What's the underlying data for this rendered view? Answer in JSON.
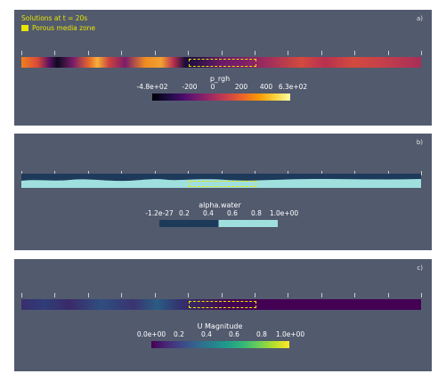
{
  "legend": {
    "title": "Solutions at t = 20s",
    "porous_label": "Porous media zone",
    "porous_color": "#e8e600"
  },
  "panels": [
    {
      "label": "a)",
      "field": "p_rgh",
      "tick_labels": [
        "-4.8e+02",
        "-200",
        "0",
        "200",
        "400",
        "6.3e+02"
      ],
      "colormap": "inferno"
    },
    {
      "label": "b)",
      "field": "alpha.water",
      "tick_labels": [
        "-1.2e-27",
        "0.2",
        "0.4",
        "0.6",
        "0.8",
        "1.0e+00"
      ],
      "colormap": "two-tone blue"
    },
    {
      "label": "c)",
      "field": "U Magnitude",
      "tick_labels": [
        "0.0e+00",
        "0.2",
        "0.4",
        "0.6",
        "0.8",
        "1.0e+00"
      ],
      "colormap": "viridis"
    }
  ],
  "colors": {
    "panel_background": "#525a6e",
    "water": "#9fe0df",
    "air": "#1e3a5a"
  }
}
